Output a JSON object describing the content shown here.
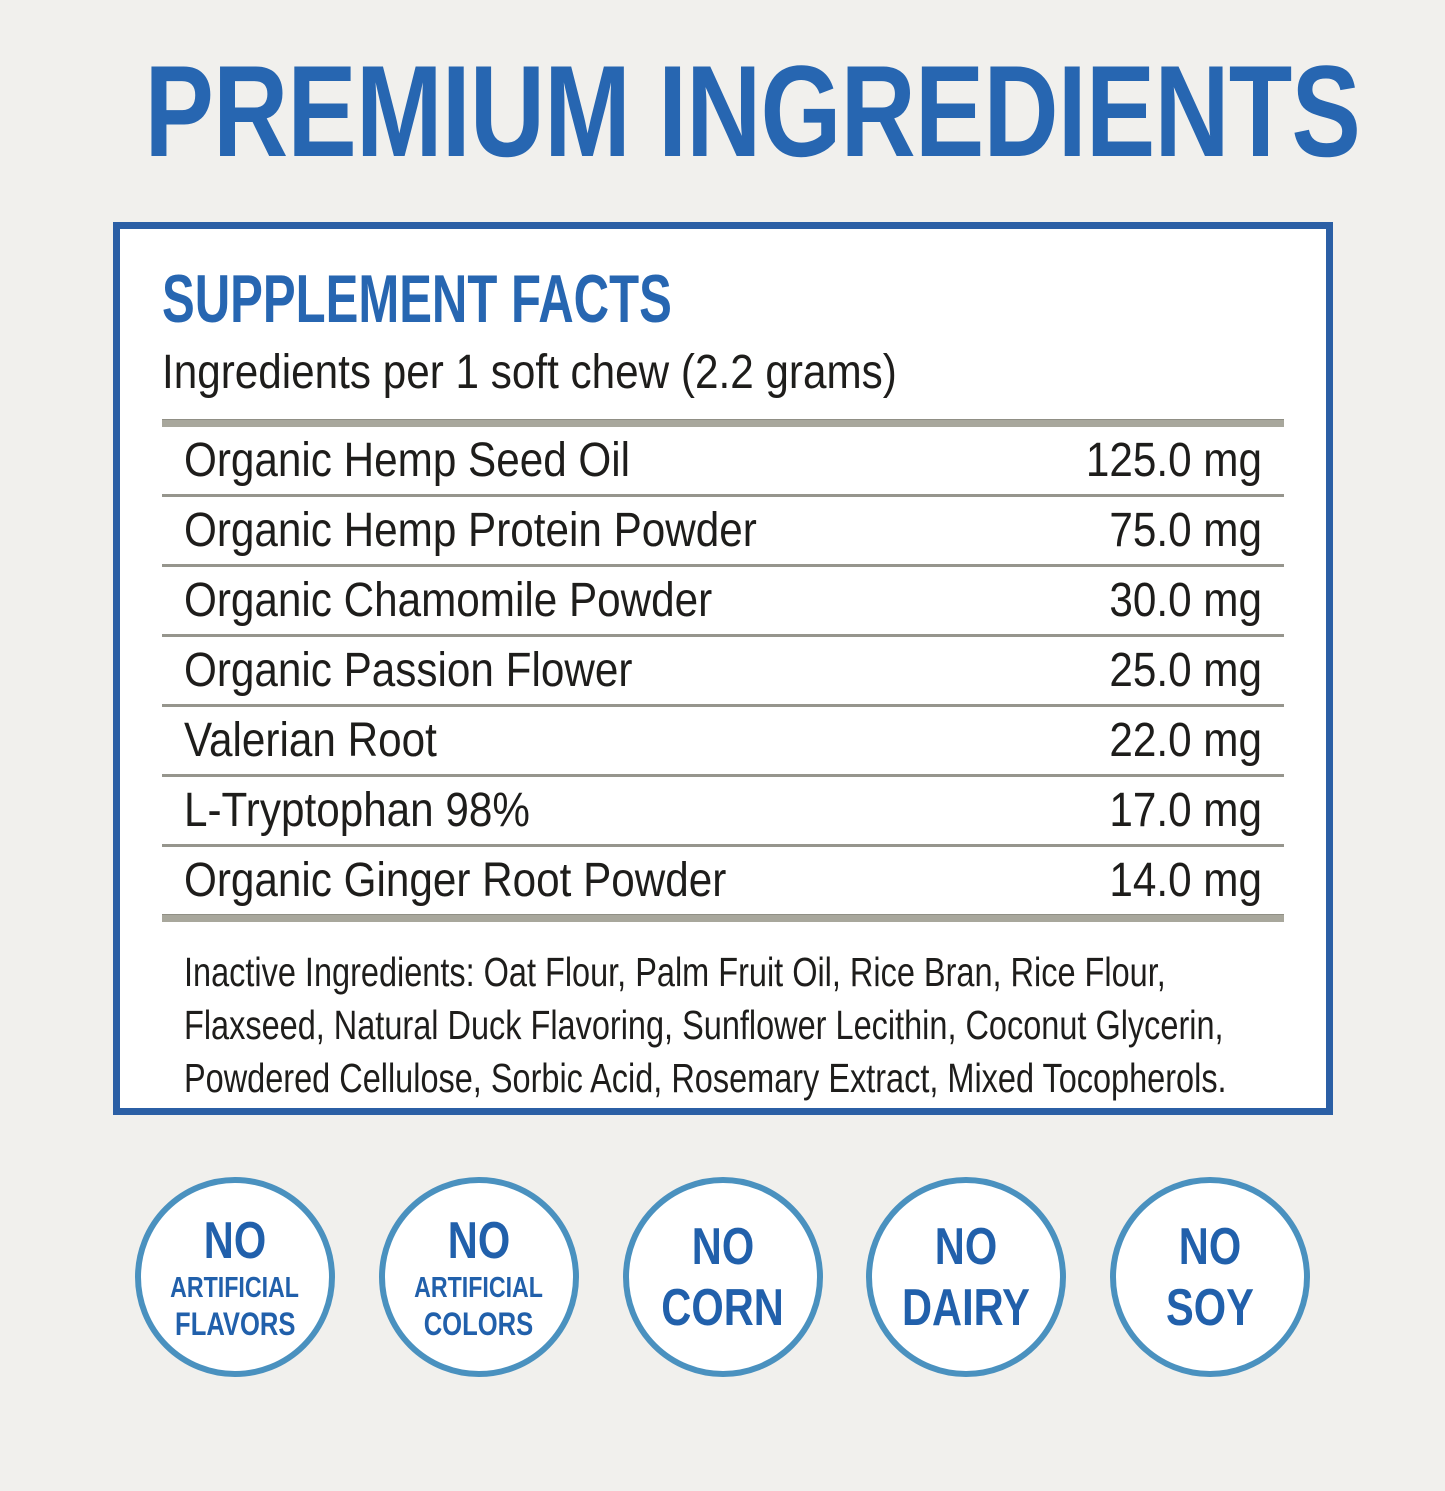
{
  "title": "PREMIUM INGREDIENTS",
  "colors": {
    "accent_blue": "#2766b1",
    "panel_border_blue": "#2b5fa5",
    "badge_ring_blue": "#4a91bf",
    "badge_text_blue": "#2160ab",
    "rule_gray": "#a8a79c",
    "background": "#f1f0ed"
  },
  "supplement_facts": {
    "heading": "SUPPLEMENT FACTS",
    "serving_line": "Ingredients per 1 soft chew (2.2 grams)",
    "ingredients": [
      {
        "name": "Organic Hemp Seed Oil",
        "amount": "125.0 mg"
      },
      {
        "name": "Organic Hemp Protein Powder",
        "amount": "75.0 mg"
      },
      {
        "name": "Organic Chamomile Powder",
        "amount": "30.0 mg"
      },
      {
        "name": "Organic Passion Flower",
        "amount": "25.0 mg"
      },
      {
        "name": "Valerian Root",
        "amount": "22.0 mg"
      },
      {
        "name": "L-Tryptophan 98%",
        "amount": "17.0 mg"
      },
      {
        "name": "Organic Ginger Root Powder",
        "amount": "14.0 mg"
      }
    ],
    "inactive_ingredients": "Inactive Ingredients: Oat Flour, Palm Fruit Oil, Rice Bran, Rice Flour, Flaxseed, Natural Duck Flavoring, Sunflower Lecithin, Coconut Glycerin, Powdered Cellulose, Sorbic Acid, Rosemary Extract, Mixed Tocopherols."
  },
  "badges": [
    {
      "lines": [
        "NO",
        "ARTIFICIAL",
        "FLAVORS"
      ]
    },
    {
      "lines": [
        "NO",
        "ARTIFICIAL",
        "COLORS"
      ]
    },
    {
      "lines": [
        "NO",
        "CORN"
      ]
    },
    {
      "lines": [
        "NO",
        "DAIRY"
      ]
    },
    {
      "lines": [
        "NO",
        "SOY"
      ]
    }
  ]
}
